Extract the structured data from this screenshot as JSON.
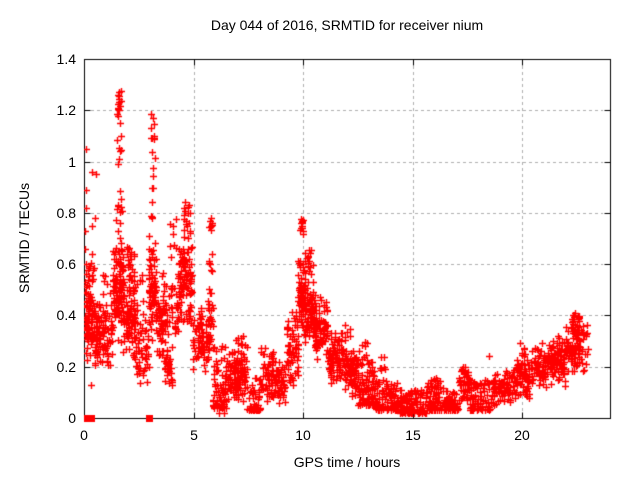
{
  "chart_data": {
    "type": "scatter",
    "title": "Day 044 of 2016, SRMTID for receiver nium",
    "xlabel": "GPS time / hours",
    "ylabel": "SRMTID / TECUs",
    "xlim": [
      0,
      24
    ],
    "ylim": [
      0,
      1.4
    ],
    "x_ticks": [
      0,
      5,
      10,
      15,
      20
    ],
    "x_tick_labels": [
      "0",
      "5",
      "10",
      "15",
      "20"
    ],
    "y_ticks": [
      0,
      0.2,
      0.4,
      0.6,
      0.8,
      1.0,
      1.2,
      1.4
    ],
    "y_tick_labels": [
      "0",
      "0.2",
      "0.4",
      "0.6",
      "0.8",
      "1",
      "1.2",
      "1.4"
    ],
    "grid": true,
    "legend": "none",
    "marker": "plus",
    "marker_size": 7,
    "point_color": "#ff0000",
    "grid_color": "#b0b0b0",
    "axis_color": "#000000",
    "background": "#ffffff",
    "seed": 20160440,
    "clusters": [
      [
        0.05,
        0.45,
        85,
        0.2,
        0.55,
        "m"
      ],
      [
        0.1,
        0.45,
        12,
        0.5,
        0.62,
        "u"
      ],
      [
        0.45,
        0.8,
        55,
        0.2,
        0.5,
        "m"
      ],
      [
        0.8,
        1.3,
        50,
        0.18,
        0.47,
        "m"
      ],
      [
        0.85,
        1.25,
        6,
        0.47,
        0.57,
        "u"
      ],
      [
        1.3,
        1.8,
        115,
        0.28,
        0.72,
        "m"
      ],
      [
        1.45,
        1.78,
        12,
        0.72,
        1.0,
        "u"
      ],
      [
        1.5,
        1.72,
        9,
        1.0,
        1.19,
        "u"
      ],
      [
        1.55,
        1.7,
        13,
        1.19,
        1.29,
        "u"
      ],
      [
        1.8,
        2.35,
        85,
        0.22,
        0.55,
        "m"
      ],
      [
        1.95,
        2.3,
        22,
        0.53,
        0.67,
        "u"
      ],
      [
        2.35,
        2.95,
        50,
        0.12,
        0.42,
        "m"
      ],
      [
        2.4,
        2.8,
        7,
        0.42,
        0.58,
        "u"
      ],
      [
        2.95,
        3.3,
        70,
        0.3,
        0.75,
        "m"
      ],
      [
        3.02,
        3.25,
        10,
        0.78,
        1.05,
        "u"
      ],
      [
        3.05,
        3.22,
        11,
        1.08,
        1.19,
        "u"
      ],
      [
        3.3,
        3.6,
        38,
        0.22,
        0.5,
        "m"
      ],
      [
        3.55,
        3.78,
        32,
        0.2,
        0.6,
        "m"
      ],
      [
        3.7,
        4.05,
        28,
        0.1,
        0.3,
        "m"
      ],
      [
        3.8,
        4.3,
        28,
        0.28,
        0.55,
        "m"
      ],
      [
        3.85,
        4.25,
        8,
        0.6,
        0.8,
        "u"
      ],
      [
        4.3,
        4.95,
        105,
        0.33,
        0.72,
        "m"
      ],
      [
        4.5,
        4.9,
        16,
        0.72,
        0.85,
        "u"
      ],
      [
        4.95,
        5.45,
        55,
        0.18,
        0.45,
        "m"
      ],
      [
        5.45,
        5.72,
        28,
        0.15,
        0.38,
        "m"
      ],
      [
        5.62,
        5.9,
        22,
        0.25,
        0.5,
        "m"
      ],
      [
        5.68,
        5.88,
        7,
        0.5,
        0.68,
        "u"
      ],
      [
        5.7,
        5.85,
        9,
        0.7,
        0.78,
        "u"
      ],
      [
        5.88,
        6.5,
        75,
        0.04,
        0.28,
        "l"
      ],
      [
        6.5,
        7.45,
        120,
        0.05,
        0.3,
        "m"
      ],
      [
        6.8,
        7.3,
        9,
        0.28,
        0.33,
        "u"
      ],
      [
        7.45,
        8.08,
        50,
        0.03,
        0.16,
        "l"
      ],
      [
        8.05,
        8.3,
        16,
        0.1,
        0.29,
        "u"
      ],
      [
        8.3,
        9.2,
        85,
        0.05,
        0.24,
        "m"
      ],
      [
        8.4,
        8.65,
        18,
        0.13,
        0.26,
        "u"
      ],
      [
        9.2,
        9.78,
        65,
        0.12,
        0.45,
        "m"
      ],
      [
        9.78,
        10.1,
        85,
        0.3,
        0.68,
        "m"
      ],
      [
        9.85,
        10.02,
        13,
        0.7,
        0.78,
        "u"
      ],
      [
        10.1,
        10.5,
        55,
        0.28,
        0.55,
        "m"
      ],
      [
        10.15,
        10.45,
        14,
        0.55,
        0.66,
        "u"
      ],
      [
        10.5,
        11.15,
        85,
        0.22,
        0.48,
        "m"
      ],
      [
        11.15,
        11.85,
        85,
        0.13,
        0.35,
        "m"
      ],
      [
        11.85,
        12.5,
        85,
        0.08,
        0.28,
        "m"
      ],
      [
        11.88,
        12.15,
        6,
        0.3,
        0.37,
        "u"
      ],
      [
        12.5,
        13.3,
        95,
        0.05,
        0.22,
        "l"
      ],
      [
        12.55,
        13.05,
        9,
        0.22,
        0.3,
        "u"
      ],
      [
        13.3,
        14.3,
        95,
        0.03,
        0.15,
        "l"
      ],
      [
        13.5,
        13.8,
        7,
        0.15,
        0.25,
        "u"
      ],
      [
        14.3,
        15.6,
        125,
        0.02,
        0.11,
        "l"
      ],
      [
        15.6,
        16.3,
        65,
        0.03,
        0.15,
        "l"
      ],
      [
        15.8,
        16.1,
        7,
        0.12,
        0.18,
        "u"
      ],
      [
        16.3,
        17.05,
        65,
        0.03,
        0.12,
        "l"
      ],
      [
        17.05,
        17.6,
        45,
        0.05,
        0.2,
        "m"
      ],
      [
        17.2,
        17.45,
        6,
        0.18,
        0.23,
        "u"
      ],
      [
        17.6,
        18.65,
        85,
        0.03,
        0.15,
        "l"
      ],
      [
        18.65,
        19.6,
        85,
        0.05,
        0.19,
        "m"
      ],
      [
        19.6,
        20.35,
        75,
        0.07,
        0.24,
        "m"
      ],
      [
        19.9,
        20.15,
        7,
        0.24,
        0.3,
        "u"
      ],
      [
        20.35,
        21.15,
        80,
        0.1,
        0.3,
        "m"
      ],
      [
        21.15,
        21.95,
        85,
        0.12,
        0.33,
        "m"
      ],
      [
        21.95,
        22.55,
        65,
        0.15,
        0.38,
        "m"
      ],
      [
        22.25,
        22.6,
        25,
        0.32,
        0.41,
        "u"
      ],
      [
        22.55,
        23.0,
        28,
        0.18,
        0.37,
        "u"
      ]
    ],
    "outliers": [
      [
        0.07,
        1.05
      ],
      [
        0.07,
        0.89
      ],
      [
        0.07,
        0.82
      ],
      [
        0.05,
        0.73
      ],
      [
        0.06,
        0.66
      ],
      [
        0.08,
        0.6
      ],
      [
        0.05,
        0.49
      ],
      [
        0.06,
        0.53
      ],
      [
        0.37,
        0.96
      ],
      [
        0.37,
        0.75
      ],
      [
        0.36,
        0.64
      ],
      [
        0.3,
        0.13
      ],
      [
        0.55,
        0.95
      ],
      [
        0.5,
        0.78
      ],
      [
        0.0,
        0.0
      ],
      [
        6.15,
        0.02
      ],
      [
        6.4,
        0.02
      ],
      [
        18.5,
        0.24
      ]
    ],
    "zero_squares": [
      0.15,
      0.32,
      2.98
    ]
  }
}
